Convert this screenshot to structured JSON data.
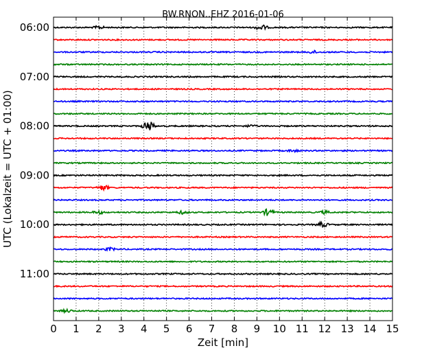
{
  "chart_data": {
    "type": "line",
    "title": "BW.RNON..EHZ 2016-01-06",
    "xlabel": "Zeit  [min]",
    "ylabel": "UTC (Lokalzeit = UTC + 01:00)",
    "xlim": [
      0,
      15
    ],
    "x_ticks": [
      "0",
      "1",
      "2",
      "3",
      "4",
      "5",
      "6",
      "7",
      "8",
      "9",
      "10",
      "11",
      "12",
      "13",
      "14",
      "15"
    ],
    "y_ticks": [
      "06:00",
      "07:00",
      "08:00",
      "09:00",
      "10:00",
      "11:00"
    ],
    "grid": "vertical-dotted",
    "trace_start_hour": 6,
    "trace_interval_min": 15,
    "trace_count": 24,
    "trace_colors": [
      "#000000",
      "#ff0000",
      "#0000ff",
      "#008000"
    ],
    "events": [
      {
        "trace": 0,
        "x": 9.2,
        "amp": 4
      },
      {
        "trace": 0,
        "x": 2.0,
        "amp": 2
      },
      {
        "trace": 2,
        "x": 11.5,
        "amp": 2
      },
      {
        "trace": 8,
        "x": 4.2,
        "amp": 8
      },
      {
        "trace": 8,
        "x": 8.7,
        "amp": 1.5
      },
      {
        "trace": 10,
        "x": 10.6,
        "amp": 1.5
      },
      {
        "trace": 13,
        "x": 2.2,
        "amp": 4
      },
      {
        "trace": 15,
        "x": 9.5,
        "amp": 5
      },
      {
        "trace": 15,
        "x": 2.0,
        "amp": 2
      },
      {
        "trace": 15,
        "x": 5.7,
        "amp": 2
      },
      {
        "trace": 15,
        "x": 12.0,
        "amp": 2
      },
      {
        "trace": 16,
        "x": 11.9,
        "amp": 3.5
      },
      {
        "trace": 18,
        "x": 2.5,
        "amp": 2
      },
      {
        "trace": 23,
        "x": 0.6,
        "amp": 2
      }
    ]
  }
}
